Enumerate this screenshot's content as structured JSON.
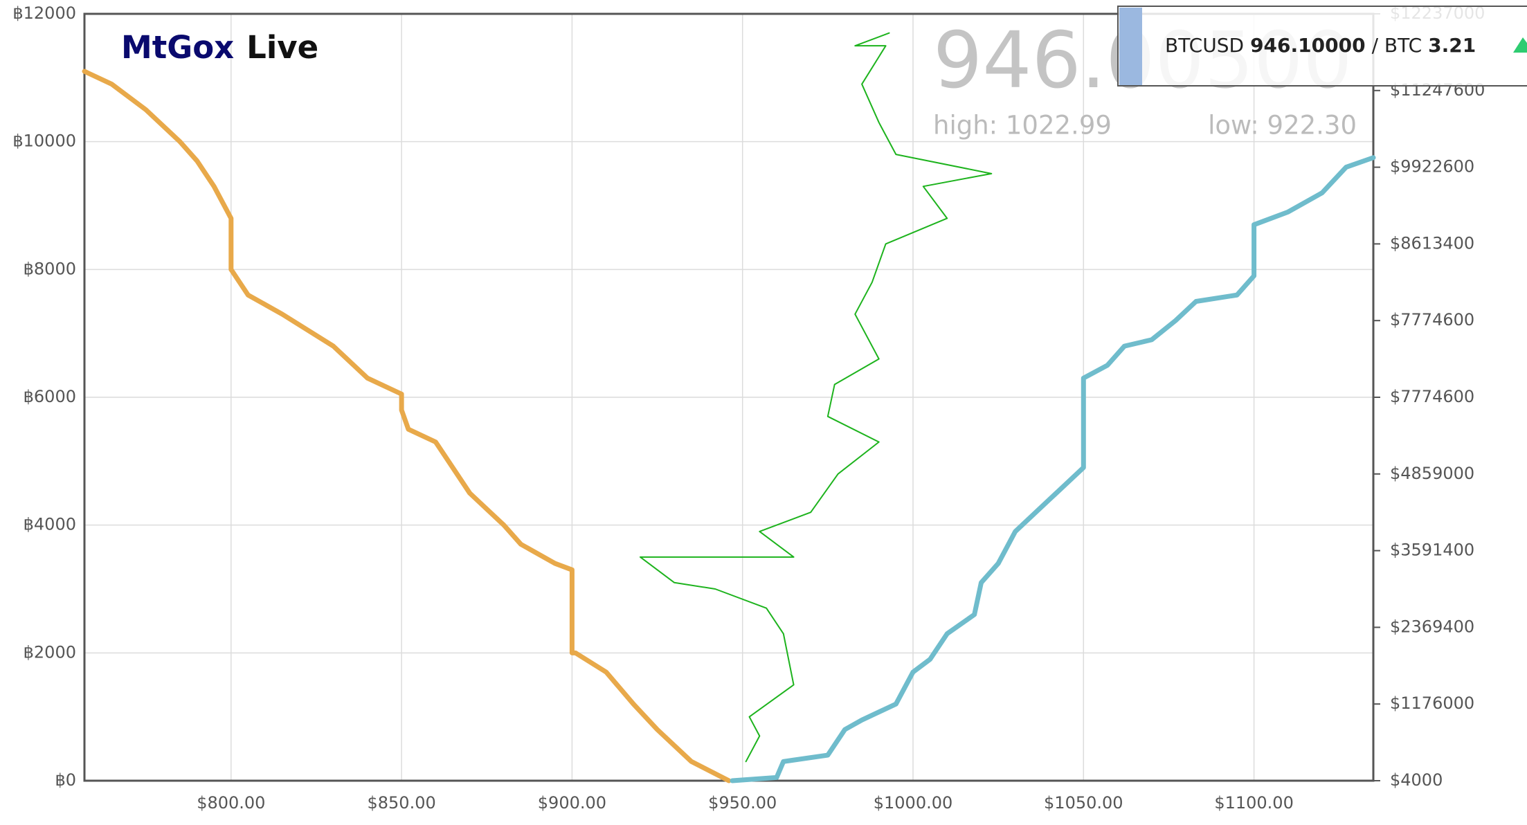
{
  "chart_data": {
    "type": "line",
    "title_part1": "MtGox",
    "title_part2": "Live",
    "last_price": "946.00500",
    "high": "high: 1022.99",
    "low": "low: 922.30",
    "ticker": {
      "pair": "BTCUSD",
      "price": "946.10000",
      "unit": "/ BTC",
      "volume": "3.21"
    },
    "xlim": [
      757,
      1135
    ],
    "ylim": [
      0,
      12000
    ],
    "xticks": [
      {
        "value": 800,
        "label": "$800.00"
      },
      {
        "value": 850,
        "label": "$850.00"
      },
      {
        "value": 900,
        "label": "$900.00"
      },
      {
        "value": 950,
        "label": "$950.00"
      },
      {
        "value": 1000,
        "label": "$1000.00"
      },
      {
        "value": 1050,
        "label": "$1050.00"
      },
      {
        "value": 1100,
        "label": "$1100.00"
      }
    ],
    "yticks": [
      {
        "value": 0,
        "label": "฿0"
      },
      {
        "value": 2000,
        "label": "฿2000"
      },
      {
        "value": 4000,
        "label": "฿4000"
      },
      {
        "value": 6000,
        "label": "฿6000"
      },
      {
        "value": 8000,
        "label": "฿8000"
      },
      {
        "value": 10000,
        "label": "฿10000"
      },
      {
        "value": 12000,
        "label": "฿12000"
      }
    ],
    "right_axis_labels": [
      "$12237000",
      "$11247600",
      "$9922600",
      "$8613400",
      "$7774600",
      "$7774600",
      "$4859000",
      "$3591400",
      "$2369400",
      "$1176000",
      "$4000"
    ],
    "grid": true,
    "series": [
      {
        "color": "#e8a94a",
        "x": [
          946,
          935,
          925,
          918,
          910,
          901,
          900,
          900,
          895,
          885,
          880,
          870,
          860,
          852,
          850,
          850,
          840,
          830,
          815,
          805,
          800,
          800,
          795,
          790,
          785,
          775,
          765,
          757
        ],
        "values": [
          0,
          300,
          800,
          1200,
          1700,
          2000,
          2000,
          3300,
          3400,
          3700,
          4000,
          4500,
          5300,
          5500,
          5800,
          6050,
          6300,
          6800,
          7300,
          7600,
          8000,
          8800,
          9300,
          9700,
          10000,
          10500,
          10900,
          11100
        ]
      },
      {
        "color": "#6fbccc",
        "x": [
          947,
          960,
          962,
          975,
          980,
          985,
          995,
          1000,
          1005,
          1010,
          1018,
          1020,
          1025,
          1030,
          1040,
          1050,
          1050,
          1057,
          1062,
          1070,
          1077,
          1083,
          1095,
          1100,
          1100,
          1110,
          1120,
          1127,
          1135
        ],
        "values": [
          0,
          50,
          300,
          400,
          800,
          950,
          1200,
          1700,
          1900,
          2300,
          2600,
          3100,
          3400,
          3900,
          4400,
          4900,
          6300,
          6500,
          6800,
          6900,
          7200,
          7500,
          7600,
          7900,
          8700,
          8900,
          9200,
          9600,
          9750
        ]
      },
      {
        "color": "#1db31d",
        "x": [
          951,
          955,
          952,
          965,
          962,
          957,
          942,
          930,
          920,
          965,
          955,
          970,
          978,
          990,
          975,
          977,
          990,
          983,
          988,
          992,
          1010,
          1003,
          1023,
          995,
          990,
          985,
          992,
          983,
          993
        ],
        "values": [
          300,
          700,
          1000,
          1500,
          2300,
          2700,
          3000,
          3100,
          3500,
          3500,
          3900,
          4200,
          4800,
          5300,
          5700,
          6200,
          6600,
          7300,
          7800,
          8400,
          8800,
          9300,
          9500,
          9800,
          10300,
          10900,
          11500,
          11500,
          11700
        ]
      }
    ]
  }
}
